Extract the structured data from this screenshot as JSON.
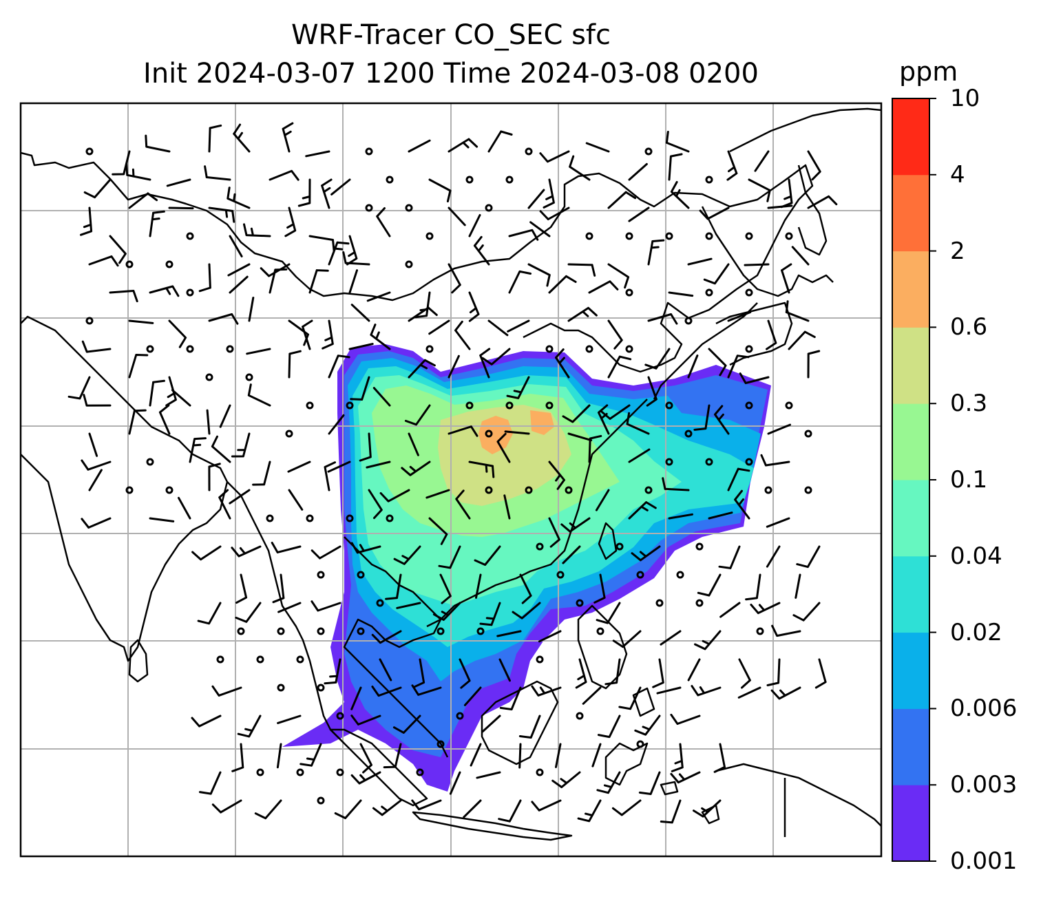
{
  "title": {
    "line1": "WRF-Tracer CO_SEC sfc",
    "line2": "Init 2024-03-07 1200 Time 2024-03-08 0200"
  },
  "colorbar": {
    "unit": "ppm",
    "levels": [
      "0.001",
      "0.003",
      "0.006",
      "0.02",
      "0.04",
      "0.1",
      "0.3",
      "0.6",
      "2",
      "4",
      "10"
    ],
    "colors": [
      "#6a2cf5",
      "#3373f2",
      "#0ab0ea",
      "#2ee0d6",
      "#66f7c0",
      "#98f792",
      "#cfe185",
      "#fbae60",
      "#ff7038",
      "#ff2a17"
    ]
  },
  "map": {
    "region": "Asia",
    "projection": "lambert-conformal",
    "gridlines": true,
    "coastline_color": "#000000",
    "grid_color": "#b0b0b0",
    "field": "CO_SEC tracer concentration (filled contours)",
    "overlay": "wind barbs"
  }
}
